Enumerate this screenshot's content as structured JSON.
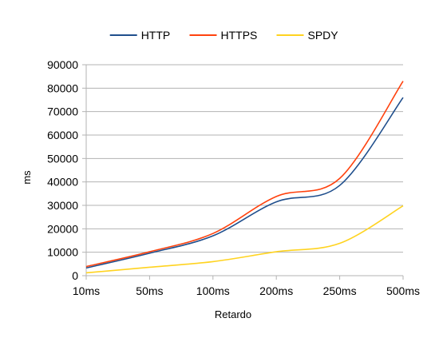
{
  "chart_data": {
    "type": "line",
    "title": "",
    "xlabel": "Retardo",
    "ylabel": "ms",
    "categories": [
      "10ms",
      "50ms",
      "100ms",
      "200ms",
      "250ms",
      "500ms"
    ],
    "ylim": [
      0,
      90000
    ],
    "yticks": [
      0,
      10000,
      20000,
      30000,
      40000,
      50000,
      60000,
      70000,
      80000,
      90000
    ],
    "ytick_labels": [
      "0",
      "10000",
      "20000",
      "30000",
      "40000",
      "50000",
      "60000",
      "70000",
      "80000",
      "90000"
    ],
    "grid": "horizontal",
    "legend": "top",
    "series": [
      {
        "name": "HTTP",
        "color": "#1f4e8c",
        "values": [
          3300,
          9600,
          17000,
          31500,
          38500,
          76000
        ]
      },
      {
        "name": "HTTPS",
        "color": "#ff420e",
        "values": [
          3900,
          10200,
          18000,
          33800,
          41500,
          83000
        ]
      },
      {
        "name": "SPDY",
        "color": "#ffd320",
        "values": [
          1200,
          3600,
          6000,
          10200,
          13800,
          29800
        ]
      }
    ]
  }
}
